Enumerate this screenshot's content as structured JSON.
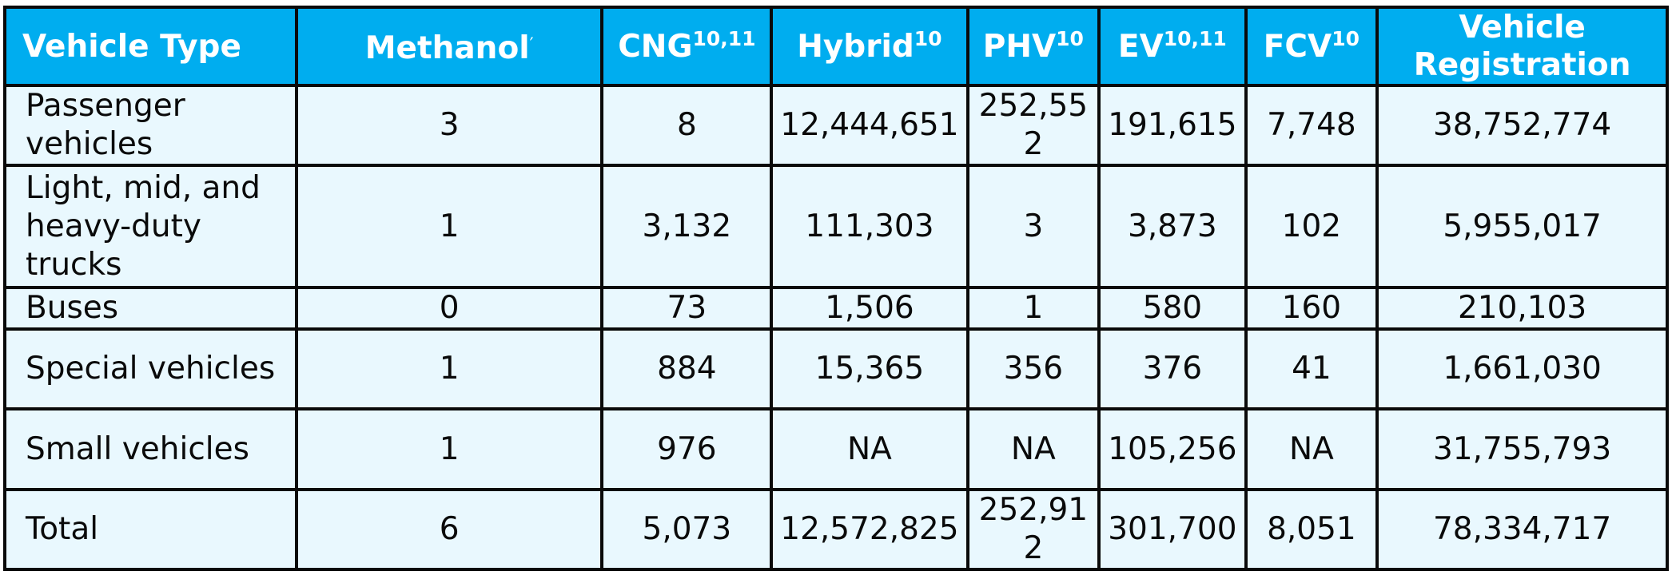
{
  "table": {
    "headers": [
      {
        "label": "Vehicle Type",
        "sup": ""
      },
      {
        "label": "Methanol",
        "sup": "",
        "mark": "′"
      },
      {
        "label": "CNG",
        "sup": "10,11"
      },
      {
        "label": "Hybrid",
        "sup": "10"
      },
      {
        "label": "PHV",
        "sup": "10"
      },
      {
        "label": "EV",
        "sup": "10,11"
      },
      {
        "label": "FCV",
        "sup": "10"
      },
      {
        "label": "Vehicle Registration",
        "sup": ""
      }
    ],
    "rows": [
      {
        "type": "Passenger vehicles",
        "cells": [
          "3",
          "8",
          "12,444,651",
          "252,552",
          "191,615",
          "7,748",
          "38,752,774"
        ]
      },
      {
        "type": "Light, mid, and heavy-duty trucks",
        "cells": [
          "1",
          "3,132",
          "111,303",
          "3",
          "3,873",
          "102",
          "5,955,017"
        ]
      },
      {
        "type": "Buses",
        "cells": [
          "0",
          "73",
          "1,506",
          "1",
          "580",
          "160",
          "210,103"
        ]
      },
      {
        "type": "Special vehicles",
        "cells": [
          "1",
          "884",
          "15,365",
          "356",
          "376",
          "41",
          "1,661,030"
        ]
      },
      {
        "type": "Small vehicles",
        "cells": [
          "1",
          "976",
          "NA",
          "NA",
          "105,256",
          "NA",
          "31,755,793"
        ]
      },
      {
        "type": "Total",
        "cells": [
          "6",
          "5,073",
          "12,572,825",
          "252,912",
          "301,700",
          "8,051",
          "78,334,717"
        ]
      }
    ]
  }
}
